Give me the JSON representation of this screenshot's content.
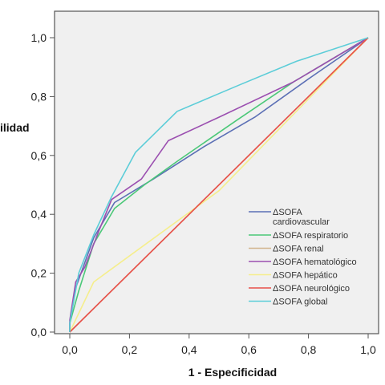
{
  "chart_data": {
    "type": "line",
    "title": "",
    "xlabel": "1 - Especificidad",
    "ylabel": "ilidad",
    "xlim": [
      0,
      1
    ],
    "ylim": [
      0,
      1
    ],
    "x_ticks": [
      "0,0",
      "0,2",
      "0,4",
      "0,6",
      "0,8",
      "1,0"
    ],
    "y_ticks": [
      "0,0",
      "0,2",
      "0,4",
      "0,6",
      "0,8",
      "1,0"
    ],
    "grid": false,
    "legend_position": "lower-right",
    "series": [
      {
        "name": "ΔSOFA cardiovascular",
        "legend_lines": [
          "ΔSOFA",
          "cardiovascular"
        ],
        "color": "#5b6fb5",
        "points": [
          [
            0,
            0
          ],
          [
            0,
            0.03
          ],
          [
            0.02,
            0.15
          ],
          [
            0.08,
            0.32
          ],
          [
            0.15,
            0.44
          ],
          [
            0.28,
            0.52
          ],
          [
            0.45,
            0.63
          ],
          [
            0.62,
            0.73
          ],
          [
            0.8,
            0.86
          ],
          [
            1,
            1
          ]
        ]
      },
      {
        "name": "ΔSOFA respiratorio",
        "legend_lines": [
          "ΔSOFA respiratorio"
        ],
        "color": "#4bc878",
        "points": [
          [
            0,
            0
          ],
          [
            0,
            0.03
          ],
          [
            0.03,
            0.14
          ],
          [
            0.08,
            0.3
          ],
          [
            0.15,
            0.42
          ],
          [
            0.25,
            0.5
          ],
          [
            0.36,
            0.58
          ],
          [
            0.56,
            0.72
          ],
          [
            0.75,
            0.85
          ],
          [
            1,
            1
          ]
        ]
      },
      {
        "name": "ΔSOFA renal",
        "legend_lines": [
          "ΔSOFA renal"
        ],
        "color": "#d2b48c",
        "points": [
          [
            0,
            0
          ],
          [
            1,
            1
          ]
        ]
      },
      {
        "name": "ΔSOFA hematológico",
        "legend_lines": [
          "ΔSOFA hematológico"
        ],
        "color": "#9b4fb0",
        "points": [
          [
            0,
            0
          ],
          [
            0,
            0.04
          ],
          [
            0.02,
            0.17
          ],
          [
            0.05,
            0.22
          ],
          [
            0.1,
            0.35
          ],
          [
            0.14,
            0.45
          ],
          [
            0.24,
            0.52
          ],
          [
            0.33,
            0.65
          ],
          [
            0.5,
            0.73
          ],
          [
            0.75,
            0.85
          ],
          [
            1,
            1
          ]
        ]
      },
      {
        "name": "ΔSOFA hepático",
        "legend_lines": [
          "ΔSOFA hepático"
        ],
        "color": "#f5ee8c",
        "points": [
          [
            0,
            0
          ],
          [
            0.08,
            0.17
          ],
          [
            0.5,
            0.48
          ],
          [
            1,
            1
          ]
        ]
      },
      {
        "name": "ΔSOFA neurológico",
        "legend_lines": [
          "ΔSOFA neurológico"
        ],
        "color": "#e8504a",
        "points": [
          [
            0,
            0
          ],
          [
            1,
            1
          ]
        ]
      },
      {
        "name": "ΔSOFA global",
        "legend_lines": [
          "ΔSOFA global"
        ],
        "color": "#5ccdd8",
        "points": [
          [
            0,
            0
          ],
          [
            0,
            0.03
          ],
          [
            0.03,
            0.2
          ],
          [
            0.08,
            0.33
          ],
          [
            0.14,
            0.46
          ],
          [
            0.22,
            0.61
          ],
          [
            0.28,
            0.67
          ],
          [
            0.36,
            0.75
          ],
          [
            0.5,
            0.81
          ],
          [
            0.57,
            0.84
          ],
          [
            0.76,
            0.92
          ],
          [
            1,
            1
          ]
        ]
      }
    ]
  }
}
